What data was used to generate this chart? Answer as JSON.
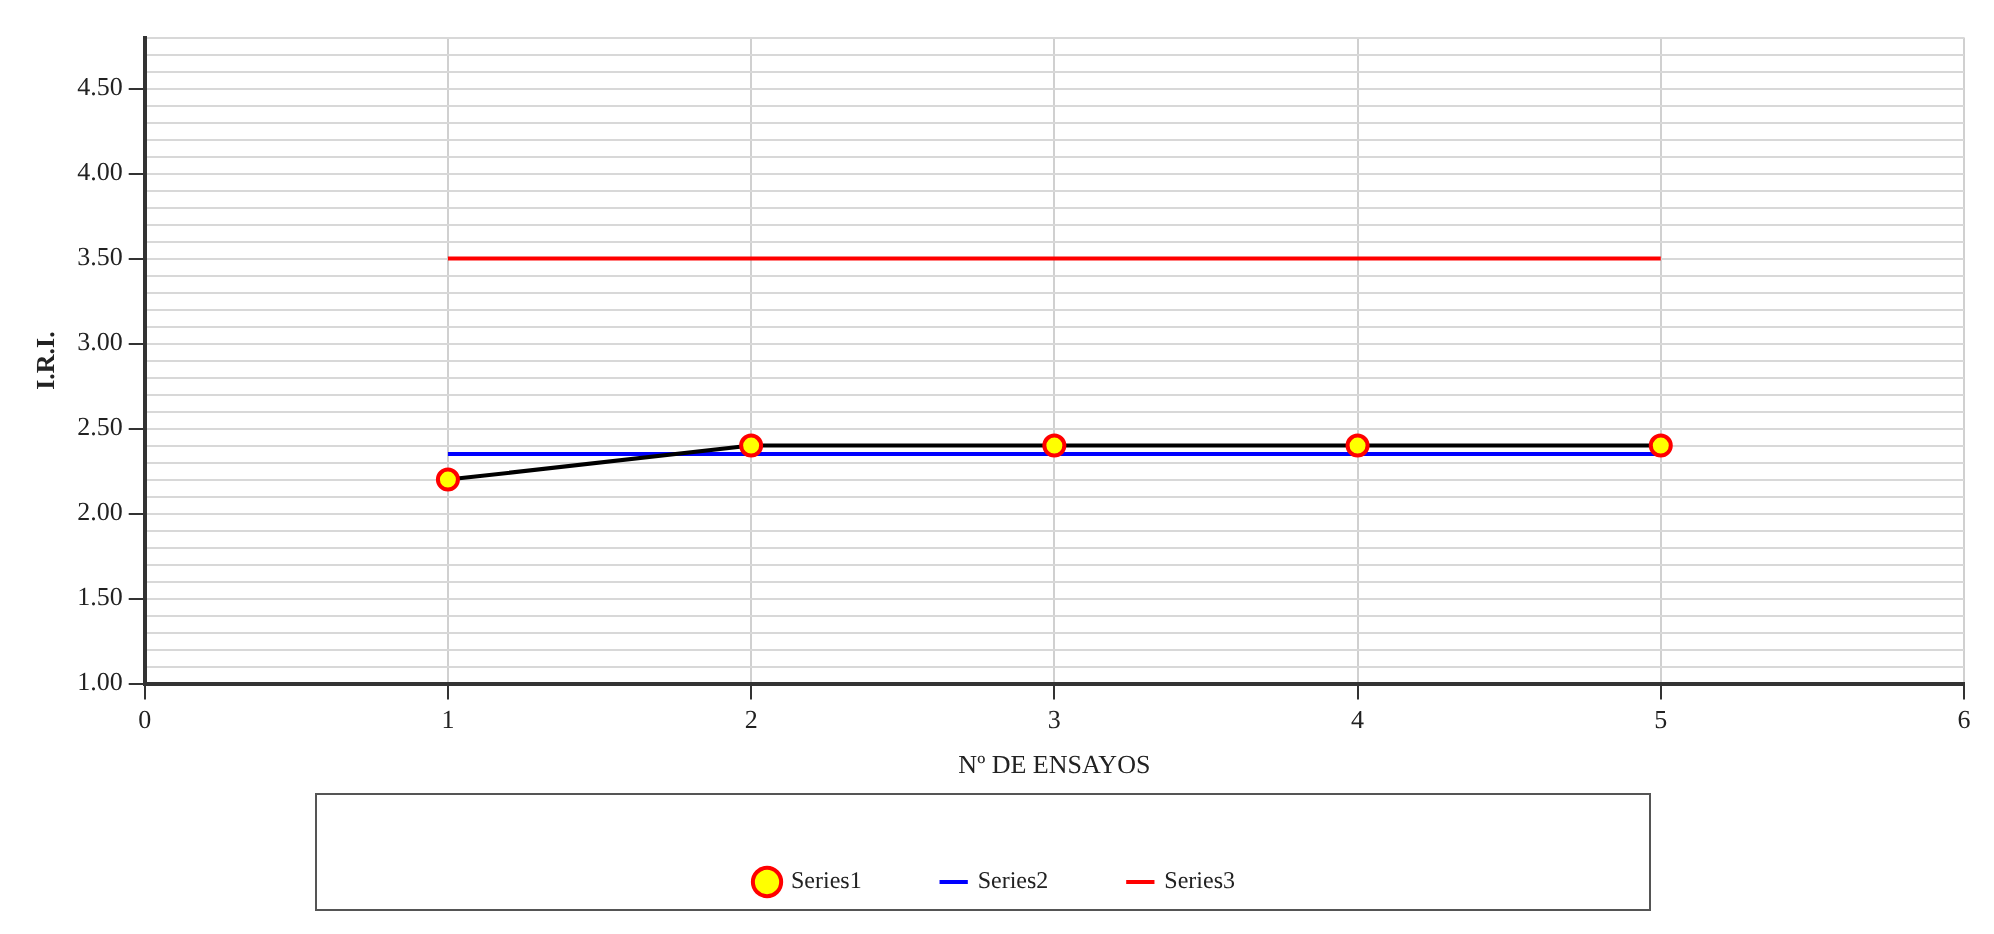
{
  "chart_data": {
    "type": "line",
    "xlabel": "Nº DE ENSAYOS",
    "ylabel": "I.R.I.",
    "xlim": [
      0,
      6
    ],
    "xticks": [
      0,
      1,
      2,
      3,
      4,
      5,
      6
    ],
    "ylim": [
      1,
      4.8
    ],
    "yticks": [
      {
        "value": 1,
        "label": "1.00"
      },
      {
        "value": 1.1,
        "label": null
      },
      {
        "value": 1.2,
        "label": null
      },
      {
        "value": 1.3,
        "label": null
      },
      {
        "value": 1.4,
        "label": null
      },
      {
        "value": 1.5,
        "label": "1.50"
      },
      {
        "value": 1.6,
        "label": null
      },
      {
        "value": 1.7,
        "label": null
      },
      {
        "value": 1.8,
        "label": null
      },
      {
        "value": 1.9,
        "label": null
      },
      {
        "value": 2,
        "label": "2.00"
      },
      {
        "value": 2.1,
        "label": null
      },
      {
        "value": 2.2,
        "label": null
      },
      {
        "value": 2.3,
        "label": null
      },
      {
        "value": 2.4,
        "label": null
      },
      {
        "value": 2.5,
        "label": "2.50"
      },
      {
        "value": 2.6,
        "label": null
      },
      {
        "value": 2.7,
        "label": null
      },
      {
        "value": 2.8,
        "label": null
      },
      {
        "value": 2.9,
        "label": null
      },
      {
        "value": 3,
        "label": "3.00"
      },
      {
        "value": 3.1,
        "label": null
      },
      {
        "value": 3.2,
        "label": null
      },
      {
        "value": 3.3,
        "label": null
      },
      {
        "value": 3.4,
        "label": null
      },
      {
        "value": 3.5,
        "label": "3.50"
      },
      {
        "value": 3.6,
        "label": null
      },
      {
        "value": 3.7,
        "label": null
      },
      {
        "value": 3.8,
        "label": null
      },
      {
        "value": 3.9,
        "label": null
      },
      {
        "value": 4,
        "label": "4.00"
      },
      {
        "value": 4.1,
        "label": null
      },
      {
        "value": 4.2,
        "label": null
      },
      {
        "value": 4.3,
        "label": null
      },
      {
        "value": 4.4,
        "label": null
      },
      {
        "value": 4.5,
        "label": "4.50"
      },
      {
        "value": 4.6,
        "label": null
      },
      {
        "value": 4.7,
        "label": null
      },
      {
        "value": 4.8,
        "label": null
      }
    ],
    "x": [
      1,
      2,
      3,
      4,
      5
    ],
    "series": [
      {
        "name": "Series1",
        "color": "#000000",
        "values": [
          2.2,
          2.4,
          2.4,
          2.4,
          2.4
        ],
        "marker": "circle"
      },
      {
        "name": "Series2",
        "color": "#0000ff",
        "values": [
          2.35,
          2.35,
          2.35,
          2.35,
          2.35
        ],
        "marker": "none"
      },
      {
        "name": "Series3",
        "color": "#ff0000",
        "values": [
          3.5,
          3.5,
          3.5,
          3.5,
          3.5
        ],
        "marker": "none"
      }
    ],
    "grid": true,
    "legend": "bottom",
    "line_style": "solid"
  }
}
